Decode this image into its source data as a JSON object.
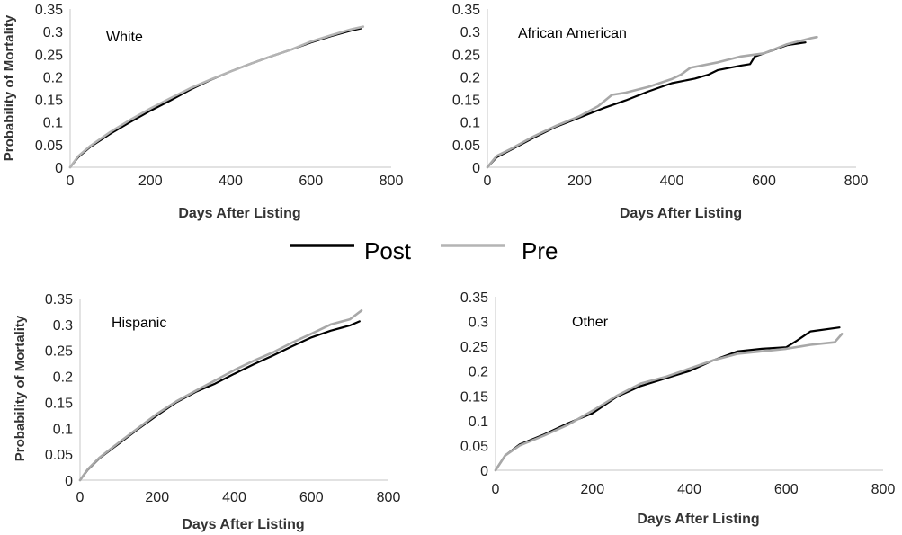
{
  "chart_data": [
    {
      "type": "line",
      "title": "White",
      "xlabel": "Days After Listing",
      "ylabel": "Probability of Mortality",
      "xlim": [
        0,
        800
      ],
      "ylim": [
        0,
        0.35
      ],
      "xticks": [
        "0",
        "200",
        "400",
        "600",
        "800"
      ],
      "yticks": [
        "0",
        "0.05",
        "0.1",
        "0.15",
        "0.2",
        "0.25",
        "0.3",
        "0.35"
      ],
      "series": [
        {
          "name": "Post",
          "color": "#000000",
          "points": [
            [
              0,
              0
            ],
            [
              20,
              0.022
            ],
            [
              50,
              0.045
            ],
            [
              100,
              0.074
            ],
            [
              150,
              0.1
            ],
            [
              200,
              0.125
            ],
            [
              250,
              0.148
            ],
            [
              300,
              0.172
            ],
            [
              350,
              0.193
            ],
            [
              400,
              0.212
            ],
            [
              450,
              0.229
            ],
            [
              500,
              0.245
            ],
            [
              550,
              0.26
            ],
            [
              600,
              0.276
            ],
            [
              650,
              0.29
            ],
            [
              700,
              0.302
            ],
            [
              725,
              0.307
            ]
          ]
        },
        {
          "name": "Pre",
          "color": "#b4b4b4",
          "points": [
            [
              0,
              0
            ],
            [
              20,
              0.024
            ],
            [
              50,
              0.047
            ],
            [
              100,
              0.078
            ],
            [
              150,
              0.105
            ],
            [
              200,
              0.13
            ],
            [
              250,
              0.153
            ],
            [
              300,
              0.175
            ],
            [
              350,
              0.194
            ],
            [
              400,
              0.212
            ],
            [
              450,
              0.229
            ],
            [
              500,
              0.245
            ],
            [
              550,
              0.26
            ],
            [
              600,
              0.278
            ],
            [
              650,
              0.292
            ],
            [
              700,
              0.305
            ],
            [
              730,
              0.311
            ]
          ]
        }
      ]
    },
    {
      "type": "line",
      "title": "African American",
      "xlabel": "Days After Listing",
      "ylabel": "",
      "xlim": [
        0,
        800
      ],
      "ylim": [
        0,
        0.35
      ],
      "xticks": [
        "0",
        "200",
        "400",
        "600",
        "800"
      ],
      "yticks": [
        "0",
        "0.05",
        "0.1",
        "0.15",
        "0.2",
        "0.25",
        "0.3",
        "0.35"
      ],
      "series": [
        {
          "name": "Post",
          "color": "#000000",
          "points": [
            [
              0,
              0
            ],
            [
              20,
              0.022
            ],
            [
              50,
              0.038
            ],
            [
              100,
              0.065
            ],
            [
              150,
              0.09
            ],
            [
              200,
              0.11
            ],
            [
              250,
              0.13
            ],
            [
              300,
              0.148
            ],
            [
              350,
              0.168
            ],
            [
              400,
              0.186
            ],
            [
              450,
              0.196
            ],
            [
              480,
              0.205
            ],
            [
              500,
              0.215
            ],
            [
              550,
              0.225
            ],
            [
              570,
              0.228
            ],
            [
              580,
              0.245
            ],
            [
              600,
              0.252
            ],
            [
              650,
              0.27
            ],
            [
              690,
              0.276
            ]
          ]
        },
        {
          "name": "Pre",
          "color": "#a8a8a8",
          "points": [
            [
              0,
              0
            ],
            [
              20,
              0.025
            ],
            [
              50,
              0.04
            ],
            [
              100,
              0.068
            ],
            [
              150,
              0.092
            ],
            [
              200,
              0.113
            ],
            [
              240,
              0.135
            ],
            [
              270,
              0.16
            ],
            [
              300,
              0.165
            ],
            [
              350,
              0.178
            ],
            [
              400,
              0.195
            ],
            [
              420,
              0.205
            ],
            [
              440,
              0.22
            ],
            [
              500,
              0.232
            ],
            [
              550,
              0.245
            ],
            [
              600,
              0.252
            ],
            [
              650,
              0.272
            ],
            [
              700,
              0.285
            ],
            [
              715,
              0.288
            ]
          ]
        }
      ]
    },
    {
      "type": "line",
      "title": "Hispanic",
      "xlabel": "Days After Listing",
      "ylabel": "Probability of Mortality",
      "xlim": [
        0,
        800
      ],
      "ylim": [
        0,
        0.35
      ],
      "xticks": [
        "0",
        "200",
        "400",
        "600",
        "800"
      ],
      "yticks": [
        "0",
        "0.05",
        "0.1",
        "0.15",
        "0.2",
        "0.25",
        "0.3",
        "0.35"
      ],
      "series": [
        {
          "name": "Post",
          "color": "#000000",
          "points": [
            [
              0,
              0
            ],
            [
              20,
              0.02
            ],
            [
              50,
              0.042
            ],
            [
              100,
              0.07
            ],
            [
              150,
              0.098
            ],
            [
              200,
              0.125
            ],
            [
              250,
              0.15
            ],
            [
              300,
              0.17
            ],
            [
              350,
              0.186
            ],
            [
              400,
              0.205
            ],
            [
              450,
              0.223
            ],
            [
              500,
              0.24
            ],
            [
              550,
              0.258
            ],
            [
              600,
              0.275
            ],
            [
              650,
              0.288
            ],
            [
              700,
              0.298
            ],
            [
              725,
              0.306
            ]
          ]
        },
        {
          "name": "Pre",
          "color": "#a8a8a8",
          "points": [
            [
              0,
              0
            ],
            [
              20,
              0.021
            ],
            [
              50,
              0.043
            ],
            [
              100,
              0.072
            ],
            [
              150,
              0.1
            ],
            [
              200,
              0.128
            ],
            [
              250,
              0.152
            ],
            [
              300,
              0.172
            ],
            [
              350,
              0.192
            ],
            [
              400,
              0.212
            ],
            [
              450,
              0.23
            ],
            [
              500,
              0.246
            ],
            [
              550,
              0.265
            ],
            [
              600,
              0.282
            ],
            [
              650,
              0.3
            ],
            [
              700,
              0.31
            ],
            [
              730,
              0.327
            ]
          ]
        }
      ]
    },
    {
      "type": "line",
      "title": "Other",
      "xlabel": "Days After Listing",
      "ylabel": "",
      "xlim": [
        0,
        800
      ],
      "ylim": [
        0,
        0.35
      ],
      "xticks": [
        "0",
        "200",
        "400",
        "600",
        "800"
      ],
      "yticks": [
        "0",
        "0.05",
        "0.1",
        "0.15",
        "0.2",
        "0.25",
        "0.3",
        "0.35"
      ],
      "series": [
        {
          "name": "Post",
          "color": "#000000",
          "points": [
            [
              0,
              0
            ],
            [
              20,
              0.03
            ],
            [
              50,
              0.052
            ],
            [
              100,
              0.072
            ],
            [
              150,
              0.095
            ],
            [
              200,
              0.115
            ],
            [
              250,
              0.148
            ],
            [
              300,
              0.17
            ],
            [
              350,
              0.185
            ],
            [
              400,
              0.2
            ],
            [
              450,
              0.222
            ],
            [
              500,
              0.24
            ],
            [
              550,
              0.245
            ],
            [
              600,
              0.248
            ],
            [
              620,
              0.26
            ],
            [
              650,
              0.28
            ],
            [
              710,
              0.288
            ]
          ]
        },
        {
          "name": "Pre",
          "color": "#a8a8a8",
          "points": [
            [
              0,
              0
            ],
            [
              20,
              0.03
            ],
            [
              50,
              0.05
            ],
            [
              100,
              0.07
            ],
            [
              150,
              0.092
            ],
            [
              200,
              0.12
            ],
            [
              250,
              0.15
            ],
            [
              300,
              0.175
            ],
            [
              350,
              0.188
            ],
            [
              400,
              0.205
            ],
            [
              450,
              0.222
            ],
            [
              500,
              0.235
            ],
            [
              550,
              0.24
            ],
            [
              600,
              0.245
            ],
            [
              650,
              0.253
            ],
            [
              700,
              0.258
            ],
            [
              715,
              0.275
            ]
          ]
        }
      ]
    }
  ],
  "legend": {
    "placement": "center",
    "items": [
      {
        "label": "Post",
        "color": "#000000"
      },
      {
        "label": "Pre",
        "color": "#b4b4b4"
      }
    ]
  }
}
